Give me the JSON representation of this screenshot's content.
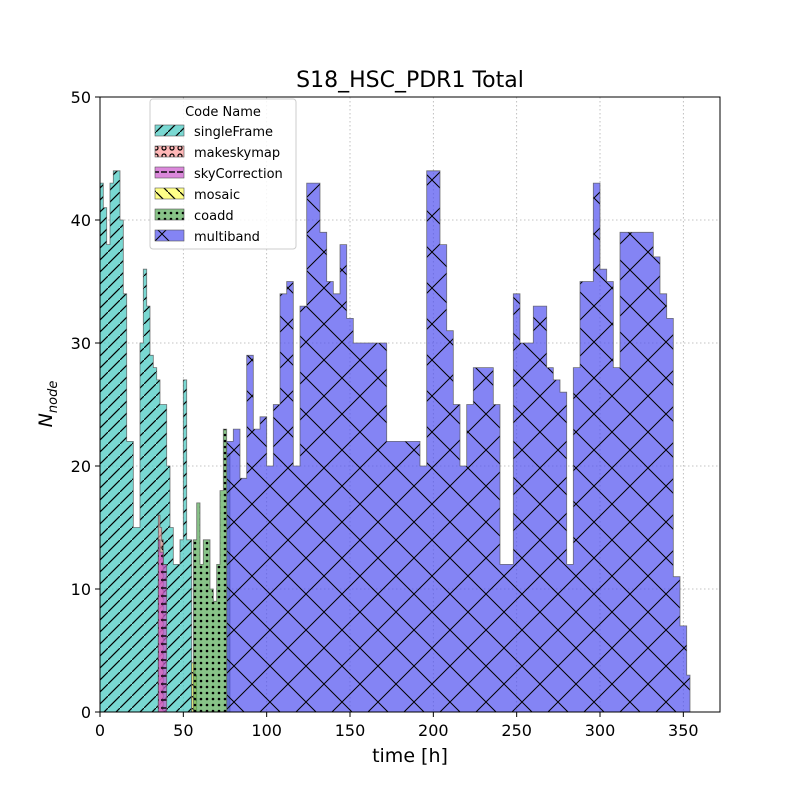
{
  "chart_data": {
    "type": "area",
    "title": "S18_HSC_PDR1 Total",
    "xlabel": "time [h]",
    "ylabel_main": "N",
    "ylabel_sub": "node",
    "xlim": [
      0,
      372
    ],
    "ylim": [
      0,
      50
    ],
    "x_ticks": [
      0,
      50,
      100,
      150,
      200,
      250,
      300,
      350
    ],
    "y_ticks": [
      0,
      10,
      20,
      30,
      40,
      50
    ],
    "grid": true,
    "legend": {
      "title": "Code Name",
      "placement": "upper-left",
      "entries": [
        "singleFrame",
        "makeskymap",
        "skyCorrection",
        "mosaic",
        "coadd",
        "multiband"
      ]
    },
    "series": [
      {
        "name": "singleFrame",
        "color": "#40c8c0",
        "hatch": "diag",
        "x": [
          0,
          2,
          4,
          6,
          8,
          12,
          14,
          16,
          20,
          22,
          24,
          26,
          28,
          30,
          32,
          34,
          36,
          40,
          42,
          44,
          46,
          48,
          50,
          52,
          55
        ],
        "y": [
          43,
          41,
          38,
          43,
          44,
          40,
          34,
          22,
          15,
          15,
          30,
          36,
          33,
          29,
          28,
          27,
          25,
          20,
          15,
          12,
          12,
          14,
          27,
          14,
          0
        ]
      },
      {
        "name": "makeskymap",
        "color": "#ff9a9a",
        "hatch": "circles",
        "x": [
          35,
          36,
          37,
          38
        ],
        "y": [
          16,
          15,
          14,
          0
        ]
      },
      {
        "name": "skyCorrection",
        "color": "#cc55cc",
        "hatch": "dash",
        "x": [
          35,
          36,
          38,
          40
        ],
        "y": [
          14,
          13,
          12,
          0
        ]
      },
      {
        "name": "mosaic",
        "color": "#ffff55",
        "hatch": "back",
        "x": [
          55,
          56,
          57,
          58
        ],
        "y": [
          4,
          4,
          3,
          0
        ]
      },
      {
        "name": "coadd",
        "color": "#55aa55",
        "hatch": "dots",
        "x": [
          56,
          58,
          60,
          62,
          64,
          66,
          68,
          70,
          72,
          74,
          76,
          78
        ],
        "y": [
          14,
          17,
          12,
          14,
          14,
          10,
          9,
          12,
          18,
          23,
          21,
          0
        ]
      },
      {
        "name": "multiband",
        "color": "#5050f0",
        "hatch": "cross",
        "x": [
          76,
          80,
          84,
          88,
          92,
          96,
          100,
          104,
          108,
          112,
          116,
          120,
          124,
          128,
          132,
          136,
          140,
          144,
          148,
          152,
          156,
          160,
          164,
          168,
          172,
          176,
          180,
          184,
          188,
          192,
          196,
          200,
          204,
          208,
          212,
          216,
          220,
          224,
          228,
          232,
          236,
          240,
          244,
          248,
          252,
          256,
          260,
          264,
          268,
          272,
          276,
          280,
          284,
          288,
          292,
          296,
          300,
          304,
          308,
          312,
          316,
          320,
          324,
          328,
          332,
          336,
          340,
          344,
          348,
          352,
          354
        ],
        "y": [
          22,
          23,
          19,
          29,
          23,
          24,
          20,
          25,
          34,
          35,
          20,
          33,
          43,
          43,
          39,
          35,
          34,
          38,
          32,
          30,
          30,
          30,
          30,
          30,
          22,
          22,
          22,
          22,
          22,
          20,
          44,
          44,
          38,
          31,
          25,
          20,
          25,
          28,
          28,
          28,
          25,
          12,
          12,
          34,
          30,
          30,
          33,
          33,
          28,
          27,
          26,
          12,
          28,
          35,
          35,
          43,
          36,
          35,
          28,
          39,
          39,
          39,
          39,
          39,
          37,
          34,
          32,
          11,
          7,
          3,
          0
        ]
      }
    ]
  }
}
